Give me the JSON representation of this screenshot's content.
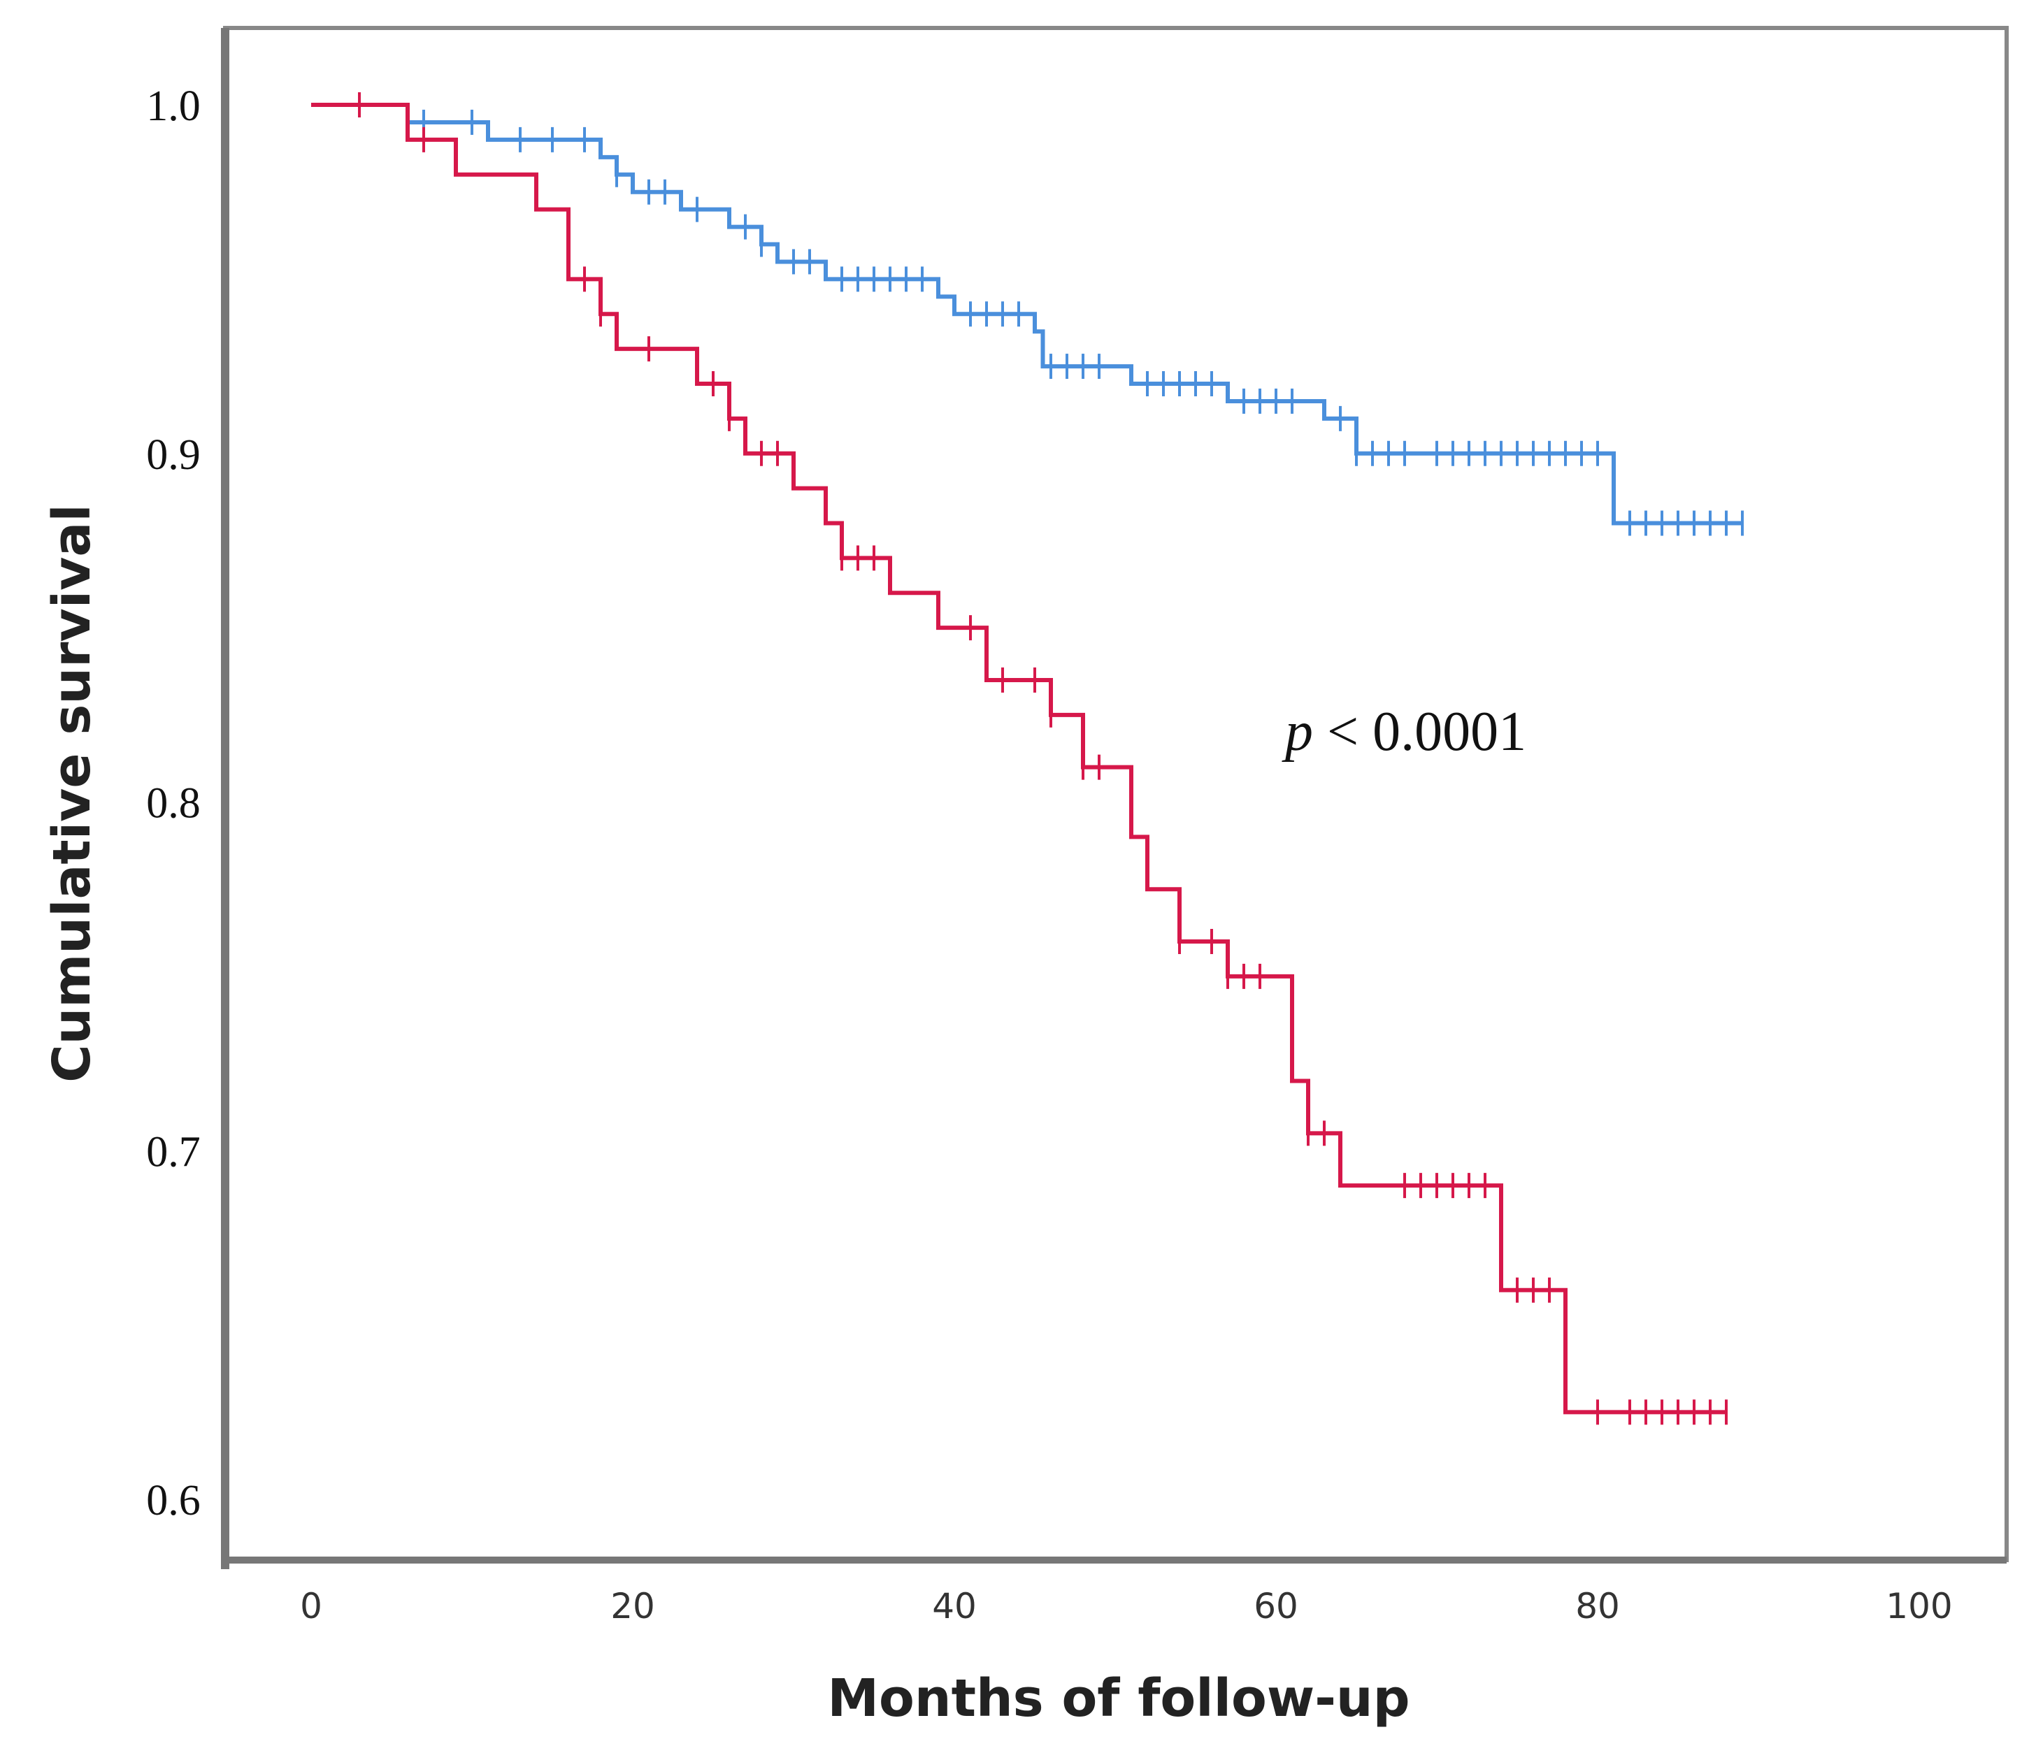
{
  "chart_data": {
    "type": "line",
    "subtype": "kaplan-meier",
    "title": "",
    "xlabel": "Months of follow-up",
    "ylabel": "Cumulative survival",
    "xlim": [
      0,
      100
    ],
    "ylim": [
      0.6,
      1.0
    ],
    "x_ticks": [
      "0",
      "20",
      "40",
      "60",
      "80",
      "100"
    ],
    "y_ticks": [
      "0.6",
      "0.7",
      "0.8",
      "0.9",
      "1.0"
    ],
    "grid": false,
    "annotation": {
      "p_symbol": "p",
      "text": " < 0.0001"
    },
    "series": [
      {
        "color": "#4a8fdc",
        "steps": [
          [
            0,
            1.0
          ],
          [
            6,
            0.995
          ],
          [
            11,
            0.99
          ],
          [
            18,
            0.985
          ],
          [
            19,
            0.98
          ],
          [
            20,
            0.975
          ],
          [
            23,
            0.97
          ],
          [
            26,
            0.965
          ],
          [
            28,
            0.96
          ],
          [
            29,
            0.955
          ],
          [
            32,
            0.95
          ],
          [
            39,
            0.945
          ],
          [
            40,
            0.94
          ],
          [
            45,
            0.935
          ],
          [
            45.5,
            0.925
          ],
          [
            51,
            0.92
          ],
          [
            57,
            0.915
          ],
          [
            63,
            0.91
          ],
          [
            65,
            0.9
          ],
          [
            81,
            0.88
          ]
        ],
        "end_x": 89,
        "censored": [
          3,
          7,
          10,
          13,
          15,
          17,
          19,
          21,
          22,
          24,
          27,
          28,
          30,
          31,
          33,
          34,
          35,
          36,
          37,
          38,
          41,
          42,
          43,
          44,
          46,
          47,
          48,
          49,
          52,
          53,
          54,
          55,
          56,
          58,
          59,
          60,
          61,
          64,
          65,
          66,
          67,
          68,
          70,
          71,
          72,
          73,
          74,
          75,
          76,
          77,
          78,
          79,
          80,
          82,
          83,
          84,
          85,
          86,
          87,
          88,
          89
        ]
      },
      {
        "color": "#d6184a",
        "steps": [
          [
            0,
            1.0
          ],
          [
            6,
            0.99
          ],
          [
            9,
            0.98
          ],
          [
            14,
            0.97
          ],
          [
            16,
            0.95
          ],
          [
            18,
            0.94
          ],
          [
            19,
            0.93
          ],
          [
            24,
            0.92
          ],
          [
            26,
            0.91
          ],
          [
            27,
            0.9
          ],
          [
            30,
            0.89
          ],
          [
            32,
            0.88
          ],
          [
            33,
            0.87
          ],
          [
            36,
            0.86
          ],
          [
            39,
            0.85
          ],
          [
            42,
            0.835
          ],
          [
            46,
            0.825
          ],
          [
            48,
            0.81
          ],
          [
            51,
            0.79
          ],
          [
            52,
            0.775
          ],
          [
            54,
            0.76
          ],
          [
            57,
            0.75
          ],
          [
            61,
            0.72
          ],
          [
            62,
            0.705
          ],
          [
            64,
            0.69
          ],
          [
            74,
            0.66
          ],
          [
            78,
            0.625
          ]
        ],
        "end_x": 88,
        "censored": [
          3,
          7,
          17,
          18,
          21,
          25,
          26,
          28,
          29,
          33,
          34,
          35,
          41,
          43,
          45,
          46,
          48,
          49,
          54,
          56,
          57,
          58,
          59,
          62,
          63,
          68,
          69,
          70,
          71,
          72,
          73,
          75,
          76,
          77,
          80,
          82,
          83,
          84,
          85,
          86,
          87,
          88
        ]
      }
    ]
  }
}
